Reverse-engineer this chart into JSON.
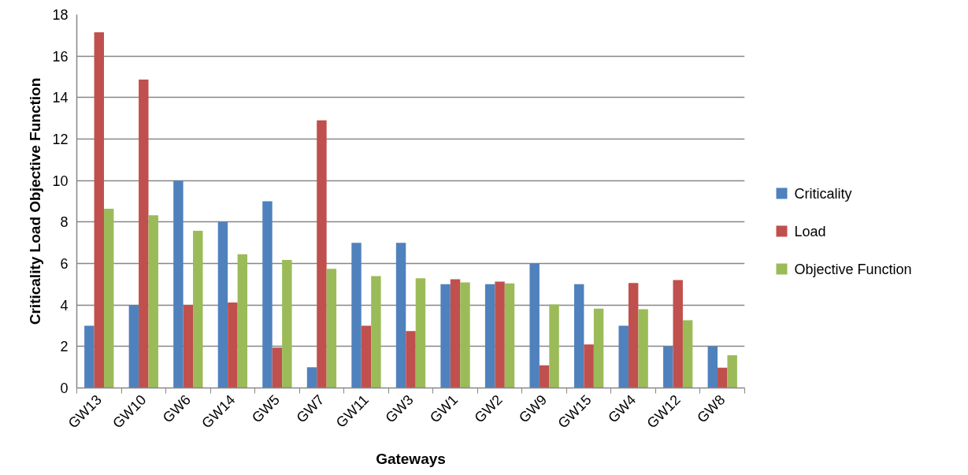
{
  "chart_data": {
    "type": "bar",
    "categories": [
      "GW13",
      "GW10",
      "GW6",
      "GW14",
      "GW5",
      "GW7",
      "GW11",
      "GW3",
      "GW1",
      "GW2",
      "GW9",
      "GW15",
      "GW4",
      "GW12",
      "GW8"
    ],
    "series": [
      {
        "name": "Criticality",
        "color": "#4f81bd",
        "values": [
          3,
          4,
          10,
          8,
          9,
          1,
          7,
          7,
          5,
          5,
          6,
          5,
          3,
          2,
          2
        ]
      },
      {
        "name": "Load",
        "color": "#c0504d",
        "values": [
          17.15,
          14.87,
          4,
          4.12,
          1.95,
          12.9,
          3,
          2.74,
          5.24,
          5.13,
          1.09,
          2.1,
          5.06,
          5.2,
          0.98
        ]
      },
      {
        "name": "Objective Function",
        "color": "#9bbb59",
        "values": [
          8.64,
          8.33,
          7.58,
          6.45,
          6.17,
          5.74,
          5.39,
          5.29,
          5.09,
          5.04,
          4.03,
          3.83,
          3.8,
          3.27,
          1.58
        ]
      }
    ],
    "xlabel": "Gateways",
    "ylabel": "Criticality Load Objective Function",
    "ylim": [
      0,
      18
    ],
    "yticks": [
      0,
      2,
      4,
      6,
      8,
      10,
      12,
      14,
      16,
      18
    ],
    "grid": "y",
    "legend": "right"
  }
}
